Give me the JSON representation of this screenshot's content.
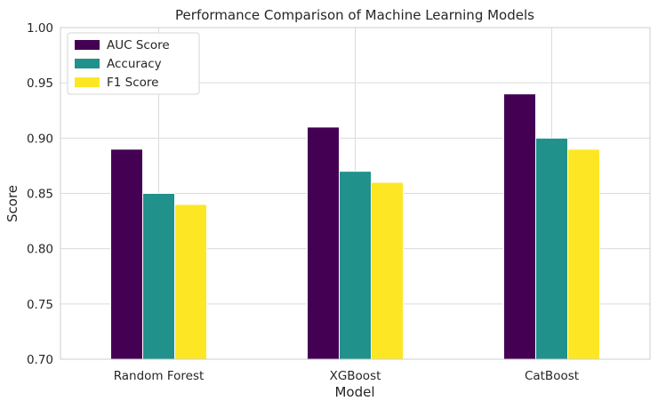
{
  "chart_data": {
    "type": "bar",
    "title": "Performance Comparison of Machine Learning Models",
    "xlabel": "Model",
    "ylabel": "Score",
    "categories": [
      "Random Forest",
      "XGBoost",
      "CatBoost"
    ],
    "series": [
      {
        "name": "AUC Score",
        "values": [
          0.89,
          0.91,
          0.94
        ],
        "color": "#440154"
      },
      {
        "name": "Accuracy",
        "values": [
          0.85,
          0.87,
          0.9
        ],
        "color": "#21918c"
      },
      {
        "name": "F1 Score",
        "values": [
          0.84,
          0.86,
          0.89
        ],
        "color": "#fde725"
      }
    ],
    "ylim": [
      0.7,
      1.0
    ],
    "yticks": [
      "0.70",
      "0.75",
      "0.80",
      "0.85",
      "0.90",
      "0.95",
      "1.00"
    ],
    "grid": true,
    "legend_position": "top-left"
  }
}
